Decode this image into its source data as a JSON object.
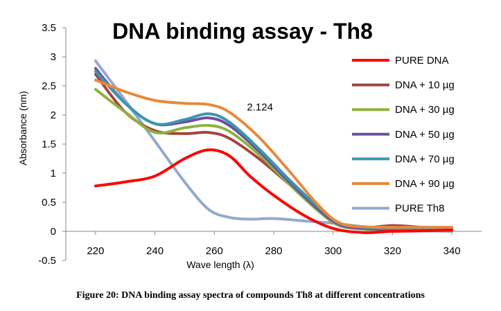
{
  "chart_data": {
    "type": "line",
    "title": "DNA binding assay - Th8",
    "xlabel": "Wave length (λ)",
    "ylabel": "Absorbance (nm)",
    "xlim": [
      210,
      350
    ],
    "ylim": [
      -0.5,
      3.5
    ],
    "xticks": [
      220,
      240,
      260,
      280,
      300,
      320,
      340
    ],
    "yticks": [
      3.5,
      3,
      2.5,
      2,
      1.5,
      1,
      0.5,
      0,
      -0.5
    ],
    "ytick_labels": [
      "3.5",
      "3",
      "2.5",
      "2",
      "1.5",
      "1",
      "0.5",
      "0",
      "-0.5"
    ],
    "legend_position": "right",
    "grid": false,
    "series": [
      {
        "name": "PURE DNA",
        "color": "#ff0000",
        "points": [
          [
            220,
            0.78
          ],
          [
            230,
            0.85
          ],
          [
            240,
            0.95
          ],
          [
            250,
            1.25
          ],
          [
            258,
            1.4
          ],
          [
            265,
            1.3
          ],
          [
            272,
            0.95
          ],
          [
            280,
            0.62
          ],
          [
            290,
            0.28
          ],
          [
            300,
            0.05
          ],
          [
            310,
            -0.02
          ],
          [
            320,
            0.0
          ],
          [
            330,
            0.01
          ],
          [
            340,
            0.02
          ]
        ]
      },
      {
        "name": "DNA + 10 µg",
        "color": "#a5433f",
        "points": [
          [
            220,
            2.7
          ],
          [
            230,
            2.05
          ],
          [
            240,
            1.73
          ],
          [
            250,
            1.68
          ],
          [
            258,
            1.7
          ],
          [
            265,
            1.6
          ],
          [
            275,
            1.25
          ],
          [
            285,
            0.82
          ],
          [
            295,
            0.4
          ],
          [
            302,
            0.12
          ],
          [
            310,
            0.06
          ],
          [
            320,
            0.1
          ],
          [
            330,
            0.07
          ],
          [
            340,
            0.05
          ]
        ]
      },
      {
        "name": "DNA + 30 µg",
        "color": "#8db33b",
        "points": [
          [
            220,
            2.44
          ],
          [
            230,
            2.05
          ],
          [
            240,
            1.7
          ],
          [
            250,
            1.78
          ],
          [
            258,
            1.82
          ],
          [
            265,
            1.72
          ],
          [
            275,
            1.32
          ],
          [
            285,
            0.82
          ],
          [
            295,
            0.35
          ],
          [
            302,
            0.1
          ],
          [
            310,
            0.04
          ],
          [
            320,
            0.03
          ],
          [
            330,
            0.03
          ],
          [
            340,
            0.03
          ]
        ]
      },
      {
        "name": "DNA + 50 µg",
        "color": "#6f4f9e",
        "points": [
          [
            220,
            2.8
          ],
          [
            230,
            2.2
          ],
          [
            240,
            1.85
          ],
          [
            250,
            1.88
          ],
          [
            258,
            1.95
          ],
          [
            265,
            1.82
          ],
          [
            275,
            1.38
          ],
          [
            285,
            0.86
          ],
          [
            295,
            0.38
          ],
          [
            302,
            0.12
          ],
          [
            310,
            0.05
          ],
          [
            320,
            0.03
          ],
          [
            330,
            0.02
          ],
          [
            340,
            0.02
          ]
        ]
      },
      {
        "name": "DNA + 70 µg",
        "color": "#3a97ad",
        "points": [
          [
            220,
            2.75
          ],
          [
            230,
            2.2
          ],
          [
            240,
            1.85
          ],
          [
            250,
            1.92
          ],
          [
            258,
            2.02
          ],
          [
            265,
            1.88
          ],
          [
            275,
            1.42
          ],
          [
            285,
            0.9
          ],
          [
            295,
            0.42
          ],
          [
            302,
            0.14
          ],
          [
            310,
            0.07
          ],
          [
            320,
            0.05
          ],
          [
            330,
            0.04
          ],
          [
            340,
            0.04
          ]
        ]
      },
      {
        "name": "DNA + 90 µg",
        "color": "#e8893a",
        "points": [
          [
            220,
            2.6
          ],
          [
            230,
            2.4
          ],
          [
            240,
            2.25
          ],
          [
            250,
            2.2
          ],
          [
            258,
            2.18
          ],
          [
            265,
            2.05
          ],
          [
            275,
            1.62
          ],
          [
            285,
            1.05
          ],
          [
            295,
            0.45
          ],
          [
            302,
            0.15
          ],
          [
            310,
            0.08
          ],
          [
            320,
            0.07
          ],
          [
            330,
            0.07
          ],
          [
            340,
            0.07
          ]
        ]
      },
      {
        "name": "PURE Th8",
        "color": "#93a9d0",
        "points": [
          [
            220,
            2.93
          ],
          [
            230,
            2.25
          ],
          [
            240,
            1.55
          ],
          [
            250,
            0.85
          ],
          [
            258,
            0.38
          ],
          [
            265,
            0.24
          ],
          [
            272,
            0.21
          ],
          [
            280,
            0.22
          ],
          [
            290,
            0.18
          ],
          [
            300,
            0.14
          ],
          [
            310,
            0.08
          ],
          [
            320,
            0.03
          ],
          [
            330,
            0.01
          ],
          [
            340,
            0.0
          ]
        ]
      }
    ],
    "annotations": [
      {
        "text": "2.124",
        "x": 271,
        "y": 2.124
      }
    ]
  },
  "caption": "Figure 20: DNA binding assay spectra of compounds Th8 at different concentrations"
}
